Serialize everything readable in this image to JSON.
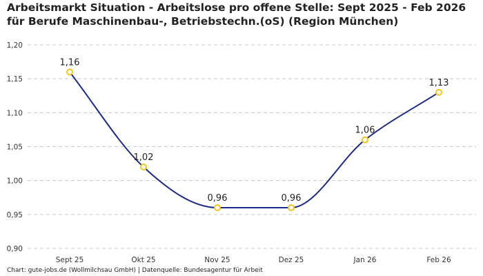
{
  "chart_data": {
    "type": "line",
    "title": "Arbeitsmarkt Situation - Arbeitslose pro offene Stelle: Sept 2025 - Feb 2026 für Berufe Maschinenbau-, Betriebstechn.(oS) (Region München)",
    "categories": [
      "Sept 25",
      "Okt 25",
      "Nov 25",
      "Dez 25",
      "Jan 26",
      "Feb 26"
    ],
    "values": [
      1.16,
      1.02,
      0.96,
      0.96,
      1.06,
      1.13
    ],
    "data_labels": [
      "1,16",
      "1,02",
      "0,96",
      "0,96",
      "1,06",
      "1,13"
    ],
    "ylim": [
      0.9,
      1.2
    ],
    "yticks": [
      0.9,
      0.95,
      1.0,
      1.05,
      1.1,
      1.15,
      1.2
    ],
    "ytick_labels": [
      "0,90",
      "0,95",
      "1,00",
      "1,05",
      "1,10",
      "1,15",
      "1,20"
    ],
    "xlabel": "",
    "ylabel": "",
    "grid": "horizontal dashed",
    "legend": "none",
    "line_color": "#1a2a8c",
    "marker_color": "#f5c518",
    "smooth": true
  },
  "footer": "Chart: gute-jobs.de (Wollmilchsau GmbH) | Datenquelle: Bundesagentur für Arbeit"
}
